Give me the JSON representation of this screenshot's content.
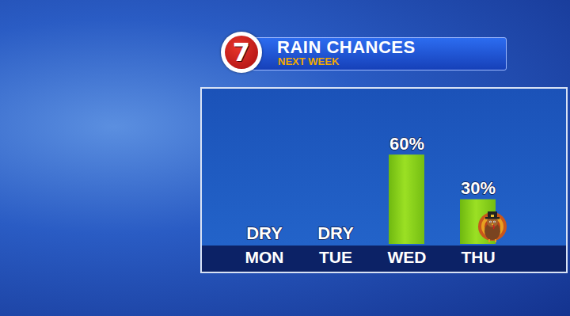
{
  "chart_data": {
    "type": "bar",
    "title": "RAIN CHANCES",
    "subtitle": "NEXT WEEK",
    "logo": "7",
    "categories": [
      "MON",
      "TUE",
      "WED",
      "THU"
    ],
    "values": [
      0,
      0,
      60,
      30
    ],
    "value_labels": [
      "DRY",
      "DRY",
      "60%",
      "30%"
    ],
    "color": "#8fd11e",
    "ylim": [
      0,
      100
    ],
    "data_labels": true,
    "tick_labels": "x",
    "grid": false
  }
}
